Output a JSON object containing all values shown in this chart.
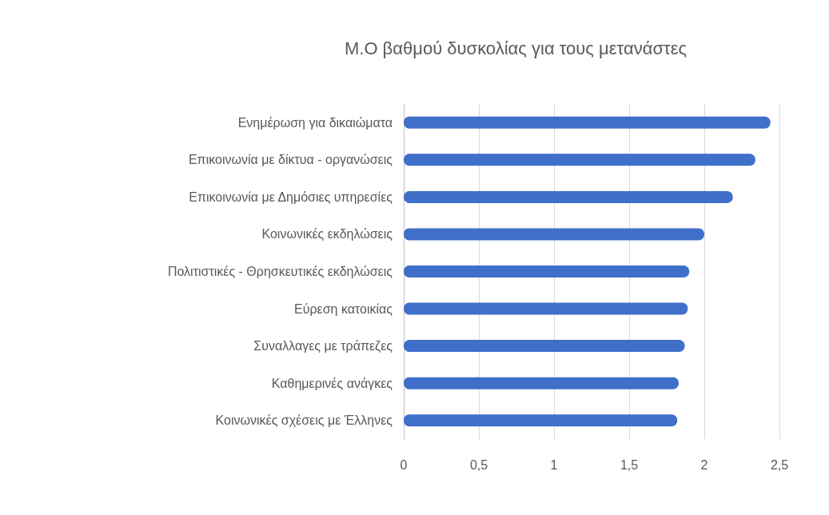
{
  "chart_data": {
    "type": "bar",
    "orientation": "horizontal",
    "title": "Μ.Ο βαθμού δυσκολίας για τους μετανάστες",
    "categories": [
      "Ενημέρωση για δικαιώματα",
      "Επικοινωνία με δίκτυα - οργανώσεις",
      "Επικοινωνία με Δημόσιες υπηρεσίες",
      "Κοινωνικές εκδηλώσεις",
      "Πολιτιστικές - Θρησκευτικές εκδηλώσεις",
      "Εύρεση κατοικίας",
      "Συναλλαγες με τράπεζες",
      "Καθημερινές ανάγκες",
      "Κοινωνικές σχέσεις με Έλληνες"
    ],
    "values": [
      2.44,
      2.34,
      2.19,
      2.0,
      1.9,
      1.89,
      1.87,
      1.83,
      1.82
    ],
    "color": "#3f6fc9",
    "xlim": [
      0,
      2.5
    ],
    "xticks": [
      0,
      {
        "value": 0.5,
        "label": "0,5"
      },
      1,
      {
        "value": 1.5,
        "label": "1,5"
      },
      2,
      {
        "value": 2.5,
        "label": "2,5"
      }
    ],
    "grid": "x"
  }
}
